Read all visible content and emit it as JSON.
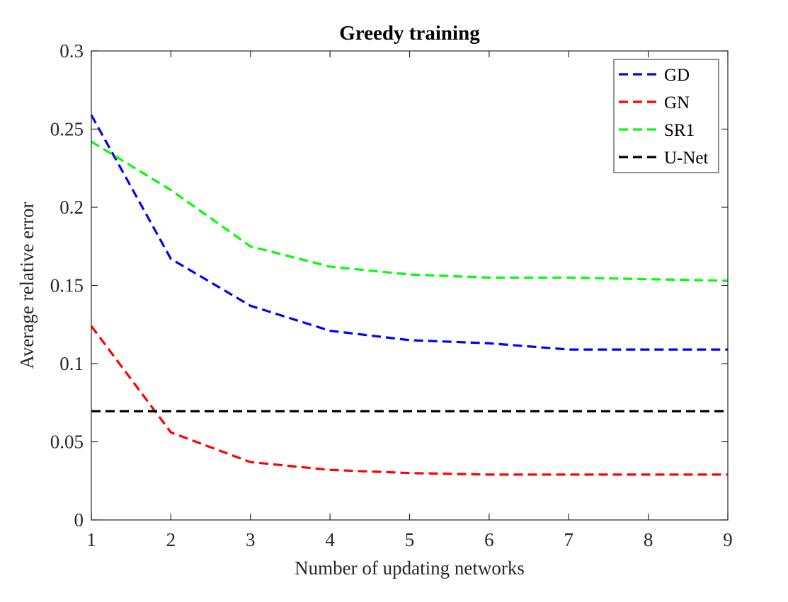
{
  "chart_data": {
    "type": "line",
    "title": "Greedy training",
    "xlabel": "Number of updating networks",
    "ylabel": "Average relative error",
    "x": [
      1,
      2,
      3,
      4,
      5,
      6,
      7,
      8,
      9
    ],
    "xlim": [
      1,
      9
    ],
    "ylim": [
      0,
      0.3
    ],
    "xticks": [
      "1",
      "2",
      "3",
      "4",
      "5",
      "6",
      "7",
      "8",
      "9"
    ],
    "yticks": [
      "0",
      "0.05",
      "0.1",
      "0.15",
      "0.2",
      "0.25",
      "0.3"
    ],
    "grid": false,
    "legend_position": "top-right",
    "series": [
      {
        "name": "GD",
        "color": "#0000ff",
        "style": "dashed",
        "values": [
          0.259,
          0.167,
          0.137,
          0.121,
          0.115,
          0.113,
          0.109,
          0.109,
          0.109
        ]
      },
      {
        "name": "GN",
        "color": "#ff0000",
        "style": "dashed",
        "values": [
          0.124,
          0.056,
          0.037,
          0.032,
          0.03,
          0.029,
          0.029,
          0.029,
          0.029
        ]
      },
      {
        "name": "SR1",
        "color": "#00ff00",
        "style": "dashed",
        "values": [
          0.242,
          0.211,
          0.175,
          0.162,
          0.157,
          0.155,
          0.155,
          0.154,
          0.153
        ]
      },
      {
        "name": "U-Net",
        "color": "#000000",
        "style": "dashed",
        "values": [
          0.0695,
          0.0695,
          0.0695,
          0.0695,
          0.0695,
          0.0695,
          0.0695,
          0.0695,
          0.0695
        ]
      }
    ]
  }
}
